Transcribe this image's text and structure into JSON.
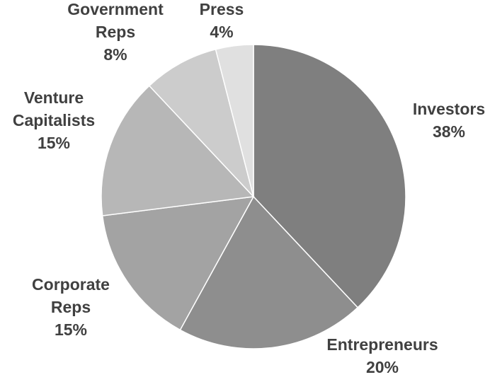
{
  "chart_data": {
    "type": "pie",
    "title": "",
    "start": "12 o'clock, clockwise",
    "slices": [
      {
        "name": "Investors",
        "pct_label": "38%",
        "value": 38,
        "color": "#7f7f7f"
      },
      {
        "name": "Entrepreneurs",
        "pct_label": "20%",
        "value": 20,
        "color": "#8e8e8e"
      },
      {
        "name": "Corporate Reps",
        "pct_label": "15%",
        "value": 15,
        "color": "#a3a3a3"
      },
      {
        "name": "Venture Capitalists",
        "pct_label": "15%",
        "value": 15,
        "color": "#b7b7b7"
      },
      {
        "name": "Government Reps",
        "pct_label": "8%",
        "value": 8,
        "color": "#cccccc"
      },
      {
        "name": "Press",
        "pct_label": "4%",
        "value": 4,
        "color": "#e0e0e0"
      }
    ],
    "labels": [
      {
        "lines": [
          "Investors",
          "38%"
        ]
      },
      {
        "lines": [
          "Entrepreneurs",
          "20%"
        ]
      },
      {
        "lines": [
          "Corporate",
          "Reps",
          "15%"
        ]
      },
      {
        "lines": [
          "Venture",
          "Capitalists",
          "15%"
        ]
      },
      {
        "lines": [
          "Government",
          "Reps",
          "8%"
        ]
      },
      {
        "lines": [
          "Press",
          "4%"
        ]
      }
    ]
  }
}
